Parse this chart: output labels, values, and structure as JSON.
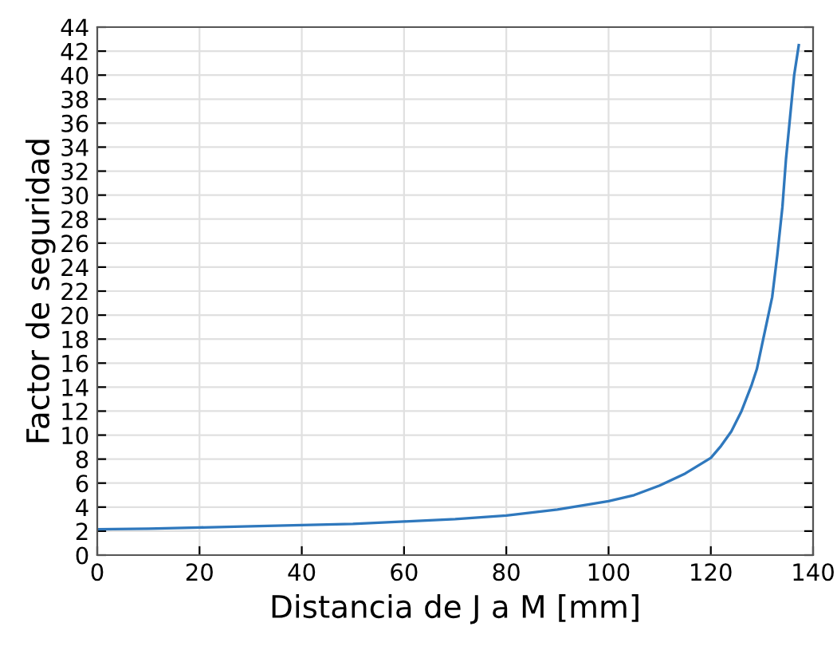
{
  "chart_data": {
    "type": "line",
    "xlabel": "Distancia de J a M [mm]",
    "ylabel": "Factor de seguridad",
    "x": [
      0,
      10,
      20,
      30,
      40,
      50,
      60,
      70,
      80,
      90,
      100,
      105,
      110,
      115,
      120,
      122,
      124,
      126,
      128,
      129,
      130,
      131,
      132,
      133,
      134,
      134.7,
      135.5,
      136.3,
      137.2
    ],
    "series": [
      {
        "color": "#2f78bd",
        "values": [
          2.15,
          2.2,
          2.3,
          2.4,
          2.5,
          2.6,
          2.8,
          3.0,
          3.3,
          3.8,
          4.5,
          5.0,
          5.8,
          6.8,
          8.1,
          9.1,
          10.3,
          12.0,
          14.2,
          15.5,
          17.5,
          19.5,
          21.5,
          25,
          29,
          33,
          36.5,
          40,
          42.5
        ]
      }
    ],
    "xlim": [
      0,
      140
    ],
    "xticks": [
      0,
      20,
      40,
      60,
      80,
      100,
      120,
      140
    ],
    "ylim": [
      0,
      44
    ],
    "yticks": [
      0,
      2,
      4,
      6,
      8,
      10,
      12,
      14,
      16,
      18,
      20,
      22,
      24,
      26,
      28,
      30,
      32,
      34,
      36,
      38,
      40,
      42,
      44
    ],
    "grid": true,
    "legend": false
  }
}
